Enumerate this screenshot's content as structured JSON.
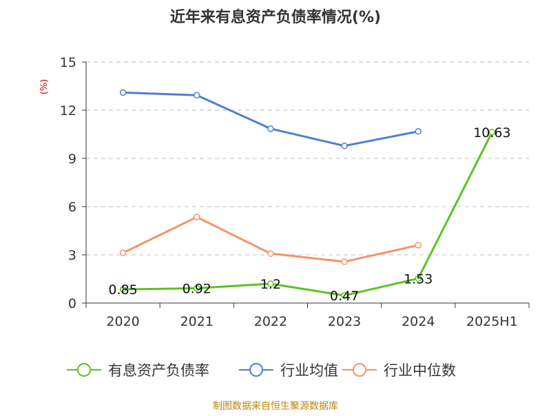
{
  "chart_data": {
    "type": "line",
    "title": "近年来有息资产负债率情况(%)",
    "ylabel": "(%)",
    "categories": [
      "2020",
      "2021",
      "2022",
      "2023",
      "2024",
      "2025H1"
    ],
    "ylim": [
      0,
      15
    ],
    "yticks": [
      0,
      3,
      6,
      9,
      12,
      15
    ],
    "grid": true,
    "legend_position": "bottom",
    "series": [
      {
        "name": "有息资产负债率",
        "color": "#5ac421",
        "values": [
          0.85,
          0.92,
          1.2,
          0.47,
          1.53,
          10.63
        ],
        "data_labels": [
          "0.85",
          "0.92",
          "1.2",
          "0.47",
          "1.53",
          "10.63"
        ]
      },
      {
        "name": "行业均值",
        "color": "#4a7fd8",
        "values": [
          13.1,
          12.93,
          10.85,
          9.78,
          10.68,
          null
        ]
      },
      {
        "name": "行业中位数",
        "color": "#f59365",
        "values": [
          3.12,
          5.35,
          3.08,
          2.57,
          3.6,
          null
        ]
      }
    ],
    "source": "制图数据来自恒生聚源数据库",
    "colors": {
      "title": "#333333",
      "ylabel": "#cc0000",
      "axis": "#333333",
      "grid": "#bfbfbf",
      "source": "#b8860b"
    }
  }
}
